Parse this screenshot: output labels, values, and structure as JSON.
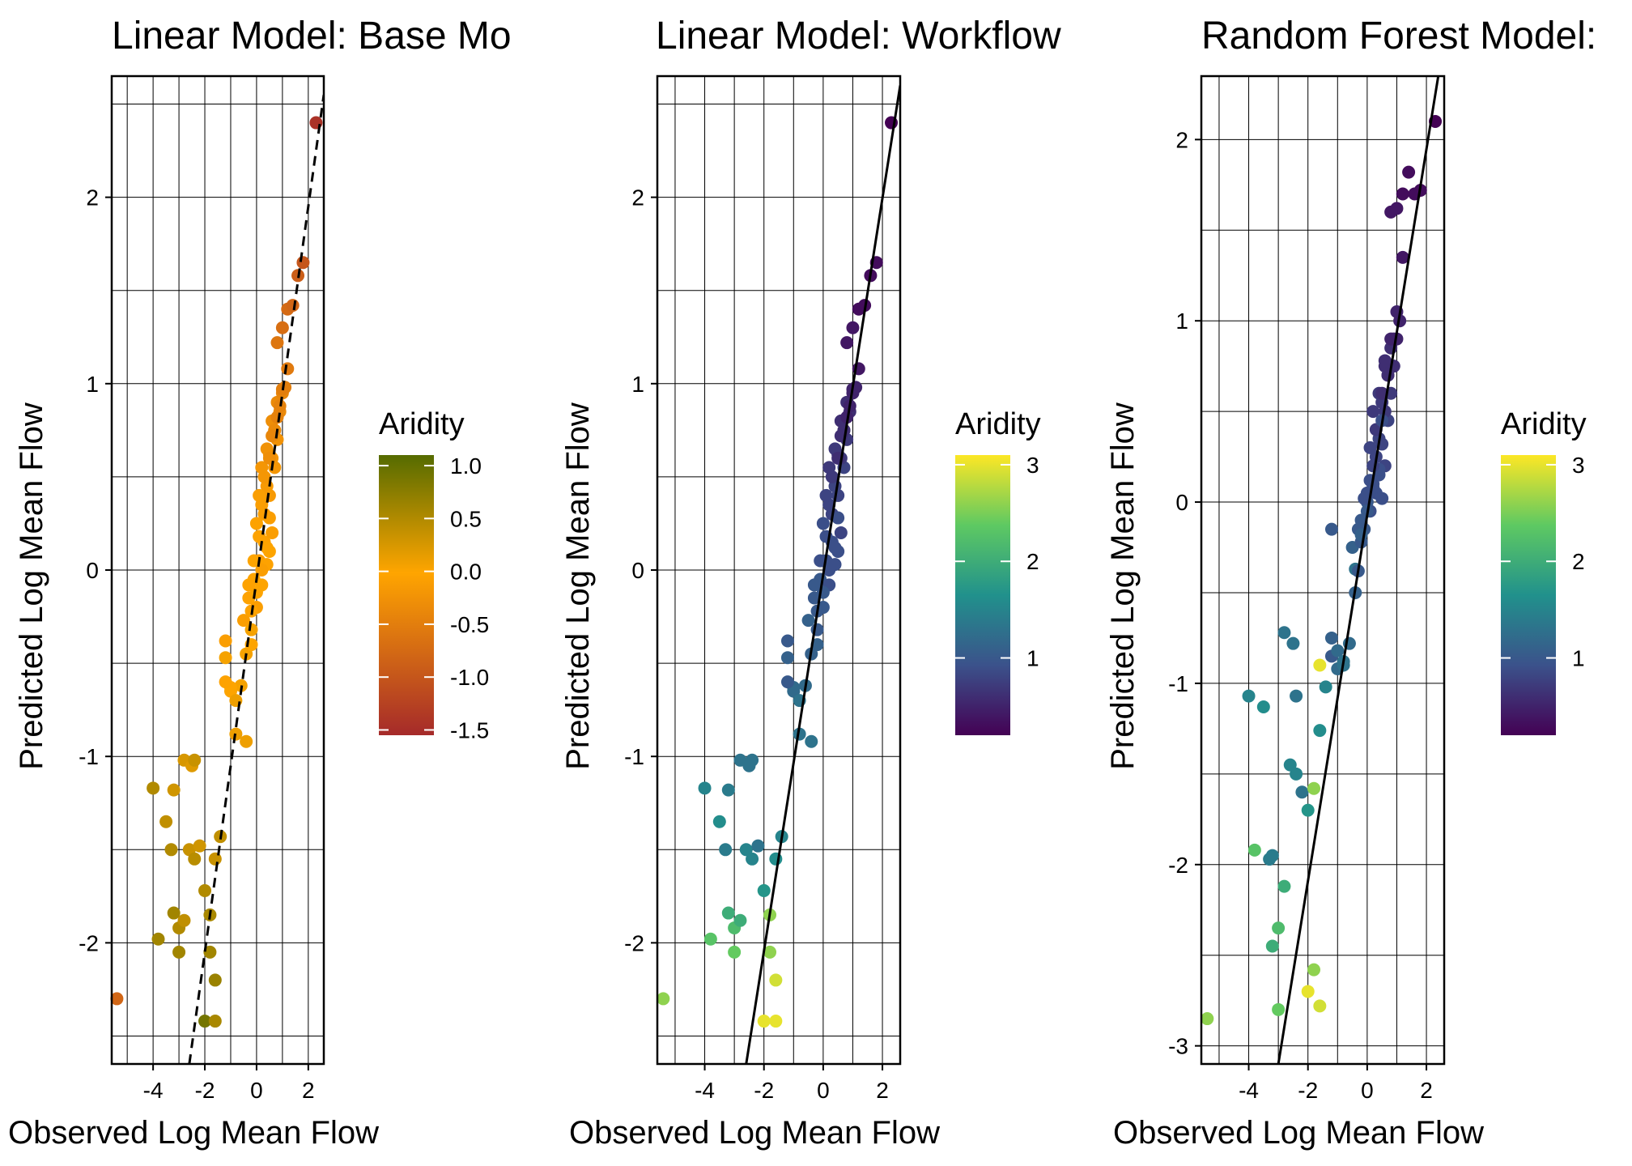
{
  "chart_data": [
    {
      "type": "scatter",
      "title": "Linear Model: Base Mo",
      "xlabel": "Observed Log Mean Flow",
      "ylabel": "Predicted Log Mean Flow",
      "xlim": [
        -5.6,
        2.6
      ],
      "ylim": [
        -2.65,
        2.65
      ],
      "x_ticks": [
        -4,
        -2,
        0,
        2
      ],
      "y_ticks": [
        -2,
        -1,
        0,
        1,
        2
      ],
      "grid": true,
      "fit_line": {
        "style": "dashed",
        "points": [
          [
            -2.6,
            -2.65
          ],
          [
            2.6,
            2.55
          ]
        ]
      },
      "legend": {
        "title": "Aridity",
        "placement": "right",
        "range": [
          -1.55,
          1.1
        ],
        "ticks": [
          1.0,
          0.5,
          0.0,
          -0.5,
          -1.0,
          -1.5
        ],
        "tick_labels": [
          "1.0",
          "0.5",
          "0.0",
          "-0.5",
          "-1.0",
          "-1.5"
        ],
        "colors": [
          {
            "stop": 0.0,
            "color": "#a52a2a"
          },
          {
            "stop": 0.58,
            "color": "#ffa500"
          },
          {
            "stop": 1.0,
            "color": "#556b00"
          }
        ]
      }
    },
    {
      "type": "scatter",
      "title": "Linear Model: Workflow",
      "xlabel": "Observed Log Mean Flow",
      "ylabel": "Predicted Log Mean Flow",
      "xlim": [
        -5.6,
        2.6
      ],
      "ylim": [
        -2.65,
        2.65
      ],
      "x_ticks": [
        -4,
        -2,
        0,
        2
      ],
      "y_ticks": [
        -2,
        -1,
        0,
        1,
        2
      ],
      "grid": true,
      "fit_line": {
        "style": "solid",
        "points": [
          [
            -2.6,
            -2.65
          ],
          [
            2.6,
            2.6
          ]
        ]
      },
      "legend": {
        "title": "Aridity",
        "placement": "right",
        "range": [
          0.2,
          3.1
        ],
        "ticks": [
          3,
          2,
          1
        ],
        "tick_labels": [
          "3",
          "2",
          "1"
        ],
        "colors": [
          {
            "stop": 0.0,
            "color": "#440154"
          },
          {
            "stop": 0.25,
            "color": "#3b528b"
          },
          {
            "stop": 0.5,
            "color": "#21918c"
          },
          {
            "stop": 0.75,
            "color": "#5ec962"
          },
          {
            "stop": 1.0,
            "color": "#fde725"
          }
        ]
      }
    },
    {
      "type": "scatter",
      "title": "Random Forest Model:",
      "xlabel": "Observed Log Mean Flow",
      "ylabel": "Predicted Log Mean Flow",
      "xlim": [
        -5.6,
        2.6
      ],
      "ylim": [
        -3.1,
        2.35
      ],
      "x_ticks": [
        -4,
        -2,
        0,
        2
      ],
      "y_ticks": [
        -3,
        -2,
        -1,
        0,
        1,
        2
      ],
      "grid": true,
      "fit_line": {
        "style": "solid",
        "points": [
          [
            -3.0,
            -3.1
          ],
          [
            2.4,
            2.35
          ]
        ]
      },
      "legend": {
        "title": "Aridity",
        "placement": "right",
        "range": [
          0.2,
          3.1
        ],
        "ticks": [
          3,
          2,
          1
        ],
        "tick_labels": [
          "3",
          "2",
          "1"
        ],
        "colors": [
          {
            "stop": 0.0,
            "color": "#440154"
          },
          {
            "stop": 0.25,
            "color": "#3b528b"
          },
          {
            "stop": 0.5,
            "color": "#21918c"
          },
          {
            "stop": 0.75,
            "color": "#5ec962"
          },
          {
            "stop": 1.0,
            "color": "#fde725"
          }
        ]
      }
    }
  ],
  "points": {
    "observed": [
      -5.4,
      -3.8,
      -4.0,
      -3.5,
      -3.3,
      -3.2,
      -3.0,
      -2.8,
      -3.0,
      -3.2,
      -2.6,
      -2.4,
      -2.2,
      -2.0,
      -1.8,
      -1.6,
      -2.8,
      -2.5,
      -1.4,
      -1.6,
      -1.8,
      -2.0,
      -1.2,
      -1.0,
      -0.8,
      -0.6,
      -0.4,
      -1.0,
      -0.8,
      -1.2,
      -0.5,
      -0.3,
      -0.1,
      0.1,
      0.3,
      0.5,
      -0.2,
      0.0,
      0.2,
      0.4,
      0.6,
      -0.4,
      -0.2,
      0.0,
      0.2,
      0.4,
      -0.3,
      -0.1,
      0.1,
      0.3,
      0.5,
      0.7,
      0.0,
      0.2,
      0.4,
      0.6,
      0.8,
      0.1,
      0.3,
      0.5,
      0.7,
      0.9,
      0.2,
      0.4,
      0.6,
      0.8,
      1.0,
      0.5,
      0.7,
      0.9,
      1.1,
      0.6,
      0.8,
      1.0,
      1.2,
      0.8,
      1.0,
      1.2,
      1.4,
      1.6,
      1.8,
      2.3,
      -1.2,
      -0.2,
      0.5,
      -1.6,
      -2.4
    ],
    "predicted": [
      -2.3,
      -1.98,
      -1.17,
      -1.35,
      -1.5,
      -1.84,
      -1.92,
      -1.88,
      -2.05,
      -1.18,
      -1.5,
      -1.55,
      -1.48,
      -1.72,
      -1.85,
      -2.2,
      -1.02,
      -1.05,
      -1.43,
      -1.55,
      -2.05,
      -2.42,
      -0.38,
      -0.65,
      -0.7,
      -0.62,
      -0.92,
      -0.63,
      -0.88,
      -0.47,
      -0.27,
      -0.15,
      -0.05,
      0.05,
      0.15,
      0.1,
      -0.32,
      -0.2,
      -0.08,
      0.03,
      0.2,
      -0.45,
      -0.22,
      -0.12,
      0.0,
      0.12,
      -0.08,
      0.05,
      0.18,
      0.3,
      0.4,
      0.55,
      0.25,
      0.35,
      0.45,
      0.6,
      0.7,
      0.4,
      0.5,
      0.62,
      0.75,
      0.85,
      0.55,
      0.65,
      0.8,
      0.9,
      0.95,
      0.6,
      0.75,
      0.88,
      0.98,
      0.72,
      0.82,
      0.97,
      1.08,
      1.22,
      1.3,
      1.4,
      1.42,
      1.58,
      1.65,
      2.4,
      -0.6,
      -0.4,
      0.28,
      -2.42,
      -1.02
    ]
  },
  "aridity": {
    "panel1": [
      -0.8,
      0.6,
      0.5,
      0.4,
      0.5,
      0.6,
      0.5,
      0.4,
      0.6,
      0.3,
      0.35,
      0.45,
      0.3,
      0.5,
      0.55,
      0.65,
      0.25,
      0.2,
      0.4,
      0.35,
      0.6,
      0.9,
      -0.1,
      0.0,
      0.1,
      0.05,
      0.1,
      0.0,
      0.1,
      0.05,
      -0.1,
      -0.05,
      0.0,
      -0.1,
      -0.05,
      0.0,
      0.05,
      -0.1,
      0.0,
      -0.05,
      -0.1,
      0.05,
      -0.05,
      0.0,
      -0.1,
      0.0,
      -0.05,
      0.0,
      -0.05,
      -0.1,
      -0.15,
      -0.2,
      -0.05,
      -0.1,
      -0.15,
      -0.2,
      -0.25,
      -0.1,
      -0.2,
      -0.25,
      -0.3,
      -0.35,
      -0.2,
      -0.25,
      -0.3,
      -0.35,
      -0.4,
      -0.3,
      -0.35,
      -0.45,
      -0.5,
      -0.4,
      -0.45,
      -0.5,
      -0.55,
      -0.6,
      -0.7,
      -0.75,
      -0.8,
      -0.9,
      -1.0,
      -1.45,
      -0.05,
      0.0,
      -0.1,
      0.55,
      0.35
    ],
    "panel23": [
      2.6,
      2.3,
      1.5,
      1.6,
      1.4,
      2.0,
      2.2,
      2.0,
      2.4,
      1.4,
      1.5,
      1.5,
      1.3,
      1.7,
      2.6,
      2.9,
      1.3,
      1.3,
      1.5,
      1.6,
      2.6,
      3.0,
      1.0,
      1.2,
      1.3,
      1.2,
      1.3,
      1.2,
      1.3,
      1.1,
      1.1,
      1.0,
      1.0,
      0.9,
      0.9,
      0.9,
      1.0,
      1.0,
      0.9,
      0.9,
      0.8,
      1.1,
      1.0,
      1.0,
      0.9,
      0.9,
      1.0,
      0.9,
      0.9,
      0.8,
      0.8,
      0.8,
      0.9,
      0.8,
      0.8,
      0.7,
      0.7,
      0.8,
      0.7,
      0.7,
      0.6,
      0.6,
      0.7,
      0.7,
      0.6,
      0.6,
      0.5,
      0.6,
      0.6,
      0.5,
      0.5,
      0.6,
      0.5,
      0.5,
      0.4,
      0.4,
      0.4,
      0.3,
      0.3,
      0.3,
      0.3,
      0.2,
      1.0,
      1.1,
      0.9,
      3.0,
      1.3
    ]
  },
  "points_rf": {
    "observed": [
      -5.4,
      -3.8,
      -4.0,
      -3.5,
      -3.3,
      -3.2,
      -3.0,
      -2.8,
      -3.0,
      -3.2,
      -2.6,
      -2.4,
      -2.2,
      -2.0,
      -1.8,
      -1.6,
      -2.8,
      -2.5,
      -1.4,
      -1.6,
      -1.8,
      -2.0,
      -1.2,
      -1.0,
      -0.8,
      -0.6,
      -0.4,
      -1.0,
      -0.8,
      -1.2,
      -0.5,
      -0.3,
      -0.1,
      0.1,
      0.3,
      0.5,
      -0.2,
      0.0,
      0.2,
      0.4,
      0.6,
      -0.4,
      -0.2,
      0.0,
      0.2,
      0.4,
      -0.3,
      -0.1,
      0.1,
      0.3,
      0.5,
      0.7,
      0.0,
      0.2,
      0.4,
      0.6,
      0.8,
      0.1,
      0.3,
      0.5,
      0.7,
      0.9,
      0.2,
      0.4,
      0.6,
      0.8,
      1.0,
      0.5,
      0.7,
      0.9,
      1.1,
      0.6,
      0.8,
      1.0,
      1.2,
      0.8,
      1.0,
      1.2,
      1.4,
      1.6,
      1.8,
      2.3,
      -1.2,
      -0.2,
      0.5,
      -1.6,
      -2.4
    ],
    "predicted": [
      -2.85,
      -1.92,
      -1.07,
      -1.13,
      -1.97,
      -2.45,
      -2.35,
      -2.12,
      -2.8,
      -1.95,
      -1.45,
      -1.5,
      -1.6,
      -1.7,
      -2.58,
      -2.78,
      -0.72,
      -0.78,
      -1.02,
      -1.26,
      -1.58,
      -2.7,
      -0.85,
      -0.92,
      -0.9,
      -0.78,
      -0.37,
      -0.82,
      -0.88,
      -0.75,
      -0.25,
      -0.38,
      -0.15,
      -0.05,
      0.05,
      0.02,
      -0.1,
      0.0,
      0.1,
      0.15,
      0.2,
      -0.5,
      -0.22,
      -0.05,
      0.08,
      0.18,
      -0.15,
      0.02,
      0.12,
      0.25,
      0.32,
      0.45,
      0.05,
      0.2,
      0.35,
      0.5,
      0.6,
      0.3,
      0.4,
      0.55,
      0.7,
      0.75,
      0.5,
      0.6,
      0.75,
      0.85,
      0.9,
      0.6,
      0.7,
      0.9,
      1.0,
      0.78,
      0.9,
      1.05,
      1.35,
      1.6,
      1.62,
      1.7,
      1.82,
      1.7,
      1.72,
      2.1,
      -0.15,
      -0.18,
      0.45,
      -0.9,
      -1.07
    ]
  }
}
